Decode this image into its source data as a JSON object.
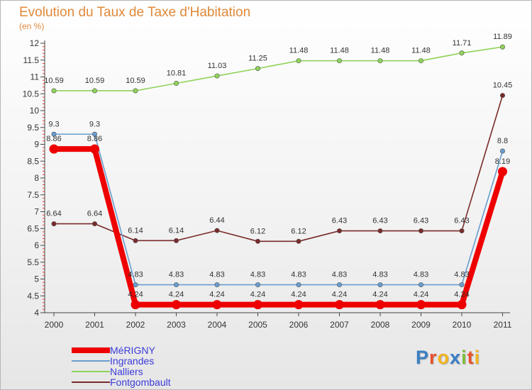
{
  "header": {
    "title": "Evolution du Taux de Taxe d'Habitation",
    "subtitle": "(en %)"
  },
  "logo": {
    "text": "Proxiti",
    "letters": [
      "P",
      "r",
      "o",
      "x",
      "i",
      "t",
      "i"
    ],
    "colors": [
      "#3a7fc4",
      "#e8502a",
      "#f2b31d",
      "#3a7fc4",
      "#7cbd3a",
      "#e8502a",
      "#f2b31d"
    ]
  },
  "chart_data": {
    "type": "line",
    "title": "Evolution du Taux de Taxe d'Habitation",
    "subtitle": "(en %)",
    "x": [
      "2000",
      "2001",
      "2002",
      "2003",
      "2004",
      "2005",
      "2006",
      "2007",
      "2008",
      "2009",
      "2010",
      "2011"
    ],
    "ylim": [
      4,
      12
    ],
    "yticks": [
      "4",
      "4.5",
      "5",
      "5.5",
      "6",
      "6.5",
      "7",
      "7.5",
      "8",
      "8.5",
      "9",
      "9.5",
      "10",
      "10.5",
      "11",
      "11.5",
      "12"
    ],
    "grid": false,
    "legend_position": "bottom-left",
    "series": [
      {
        "name": "MéRIGNY",
        "color": "#ee0000",
        "values": [
          8.86,
          8.86,
          4.24,
          4.24,
          4.24,
          4.24,
          4.24,
          4.24,
          4.24,
          4.24,
          4.24,
          8.19
        ],
        "labels": [
          "8.86",
          "8.86",
          "4.24",
          "4.24",
          "4.24",
          "4.24",
          "4.24",
          "4.24",
          "4.24",
          "4.24",
          "4.24",
          "8.19"
        ]
      },
      {
        "name": "Ingrandes",
        "color": "#6a9dcf",
        "values": [
          9.3,
          9.3,
          4.83,
          4.83,
          4.83,
          4.83,
          4.83,
          4.83,
          4.83,
          4.83,
          4.83,
          8.8
        ],
        "labels": [
          "9.3",
          "9.3",
          "4.83",
          "4.83",
          "4.83",
          "4.83",
          "4.83",
          "4.83",
          "4.83",
          "4.83",
          "4.83",
          "8.8"
        ]
      },
      {
        "name": "Nalliers",
        "color": "#8fd35a",
        "values": [
          10.59,
          10.59,
          10.59,
          10.81,
          11.03,
          11.25,
          11.48,
          11.48,
          11.48,
          11.48,
          11.71,
          11.89
        ],
        "labels": [
          "10.59",
          "10.59",
          "10.59",
          "10.81",
          "11.03",
          "11.25",
          "11.48",
          "11.48",
          "11.48",
          "11.48",
          "11.71",
          "11.89"
        ]
      },
      {
        "name": "Fontgombault",
        "color": "#7b2a2a",
        "values": [
          6.64,
          6.64,
          6.14,
          6.14,
          6.44,
          6.12,
          6.12,
          6.43,
          6.43,
          6.43,
          6.43,
          10.45
        ],
        "labels": [
          "6.64",
          "6.64",
          "6.14",
          "6.14",
          "6.44",
          "6.12",
          "6.12",
          "6.43",
          "6.43",
          "6.43",
          "6.43",
          "10.45"
        ]
      }
    ]
  },
  "legend": {
    "items": [
      {
        "label": "MéRIGNY",
        "color": "#ee0000"
      },
      {
        "label": "Ingrandes",
        "color": "#6a9dcf"
      },
      {
        "label": "Nalliers",
        "color": "#8fd35a"
      },
      {
        "label": "Fontgombault",
        "color": "#7b2a2a"
      }
    ],
    "label_color": "#3b3bd9"
  }
}
